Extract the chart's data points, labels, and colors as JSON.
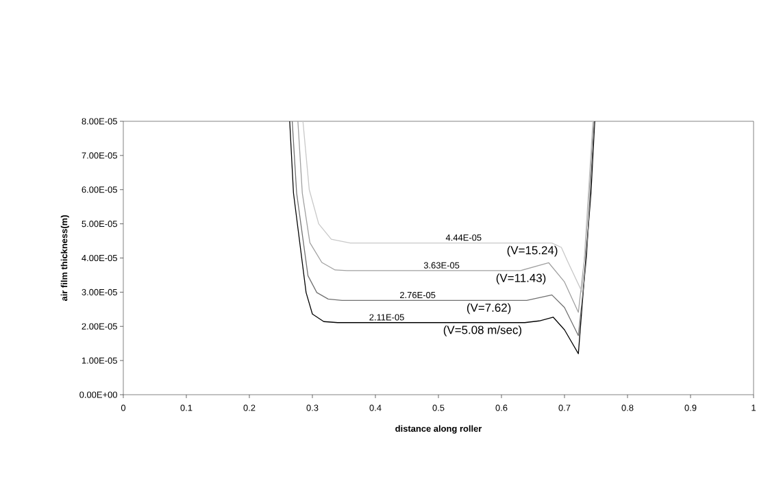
{
  "chart_data": {
    "type": "line",
    "xlabel": "distance along roller",
    "ylabel": "air film thickness(m)",
    "xlim": [
      0,
      1
    ],
    "ylim": [
      0,
      8e-05
    ],
    "xticks": [
      0,
      0.1,
      0.2,
      0.3,
      0.4,
      0.5,
      0.6,
      0.7,
      0.8,
      0.9,
      1
    ],
    "yticks": [
      {
        "value": 0,
        "label": "0.00E+00"
      },
      {
        "value": 1e-05,
        "label": "1.00E-05"
      },
      {
        "value": 2e-05,
        "label": "2.00E-05"
      },
      {
        "value": 3e-05,
        "label": "3.00E-05"
      },
      {
        "value": 4e-05,
        "label": "4.00E-05"
      },
      {
        "value": 5e-05,
        "label": "5.00E-05"
      },
      {
        "value": 6e-05,
        "label": "6.00E-05"
      },
      {
        "value": 7e-05,
        "label": "7.00E-05"
      },
      {
        "value": 8e-05,
        "label": "8.00E-05"
      }
    ],
    "grid": false,
    "legend": false,
    "marker": "none",
    "line_style": "solid",
    "series": [
      {
        "color": "#000000",
        "x": [
          0.264,
          0.27,
          0.29,
          0.3,
          0.318,
          0.34,
          0.637,
          0.66,
          0.682,
          0.7,
          0.722,
          0.742,
          0.748
        ],
        "values": [
          8e-05,
          5.9e-05,
          2.99e-05,
          2.36e-05,
          2.14e-05,
          2.11e-05,
          2.11e-05,
          2.16e-05,
          2.27e-05,
          1.9e-05,
          1.2e-05,
          5.9e-05,
          8e-05
        ]
      },
      {
        "color": "#707070",
        "x": [
          0.268,
          0.275,
          0.293,
          0.307,
          0.325,
          0.347,
          0.64,
          0.68,
          0.7,
          0.722,
          0.735,
          0.747
        ],
        "values": [
          8e-05,
          5.9e-05,
          3.48e-05,
          2.99e-05,
          2.8e-05,
          2.76e-05,
          2.76e-05,
          2.92e-05,
          2.55e-05,
          1.73e-05,
          4e-05,
          8e-05
        ]
      },
      {
        "color": "#a0a0a0",
        "x": [
          0.277,
          0.284,
          0.296,
          0.315,
          0.336,
          0.355,
          0.63,
          0.675,
          0.7,
          0.722,
          0.733,
          0.746
        ],
        "values": [
          8e-05,
          5.9e-05,
          4.45e-05,
          3.87e-05,
          3.65e-05,
          3.63e-05,
          3.63e-05,
          3.86e-05,
          3.3e-05,
          2.41e-05,
          4.2e-05,
          8e-05
        ]
      },
      {
        "color": "#c8c8c8",
        "x": [
          0.285,
          0.295,
          0.31,
          0.33,
          0.36,
          0.68,
          0.695,
          0.705,
          0.728,
          0.745
        ],
        "values": [
          8e-05,
          6e-05,
          5e-05,
          4.55e-05,
          4.44e-05,
          4.44e-05,
          4.31e-05,
          3.9e-05,
          3e-05,
          8e-05
        ]
      }
    ],
    "annotations": [
      {
        "text": "4.44E-05",
        "x": 0.54,
        "y": 4.44e-05
      },
      {
        "text": "(V=15.24)",
        "x": 0.649,
        "y": 4.44e-05
      },
      {
        "text": "3.63E-05",
        "x": 0.505,
        "y": 3.63e-05
      },
      {
        "text": "(V=11.43)",
        "x": 0.631,
        "y": 3.63e-05
      },
      {
        "text": "2.76E-05",
        "x": 0.467,
        "y": 2.76e-05
      },
      {
        "text": "(V=7.62)",
        "x": 0.58,
        "y": 2.76e-05
      },
      {
        "text": "2.11E-05",
        "x": 0.418,
        "y": 2.11e-05
      },
      {
        "text": "(V=5.08 m/sec)",
        "x": 0.57,
        "y": 2.11e-05
      }
    ]
  }
}
